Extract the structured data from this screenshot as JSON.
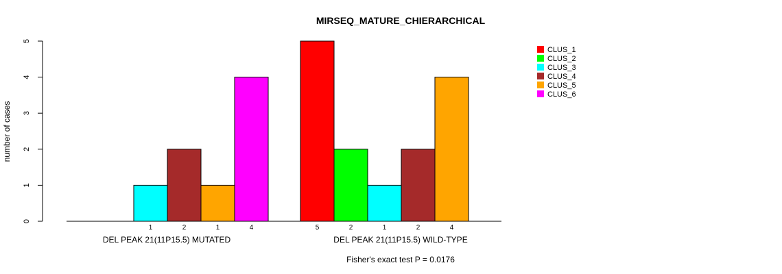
{
  "chart_data": {
    "type": "bar",
    "title": "MIRSEQ_MATURE_CHIERARCHICAL",
    "ylabel": "number of cases",
    "ylim": [
      0,
      5
    ],
    "yticks": [
      0,
      1,
      2,
      3,
      4,
      5
    ],
    "legend_position": "top-right",
    "colors": {
      "CLUS_1": "#ff0000",
      "CLUS_2": "#00ff00",
      "CLUS_3": "#00ffff",
      "CLUS_4": "#a52a2a",
      "CLUS_5": "#ffa500",
      "CLUS_6": "#ff00ff"
    },
    "legend": [
      "CLUS_1",
      "CLUS_2",
      "CLUS_3",
      "CLUS_4",
      "CLUS_5",
      "CLUS_6"
    ],
    "groups": [
      {
        "label": "DEL PEAK 21(11P15.5) MUTATED",
        "bars": [
          {
            "cluster": "CLUS_3",
            "value": 1
          },
          {
            "cluster": "CLUS_4",
            "value": 2
          },
          {
            "cluster": "CLUS_5",
            "value": 1
          },
          {
            "cluster": "CLUS_6",
            "value": 4
          }
        ]
      },
      {
        "label": "DEL PEAK 21(11P15.5) WILD-TYPE",
        "bars": [
          {
            "cluster": "CLUS_1",
            "value": 5
          },
          {
            "cluster": "CLUS_2",
            "value": 2
          },
          {
            "cluster": "CLUS_3",
            "value": 1
          },
          {
            "cluster": "CLUS_4",
            "value": 2
          },
          {
            "cluster": "CLUS_5",
            "value": 4
          }
        ]
      }
    ],
    "footnote": "Fisher's exact test P = 0.0176"
  }
}
